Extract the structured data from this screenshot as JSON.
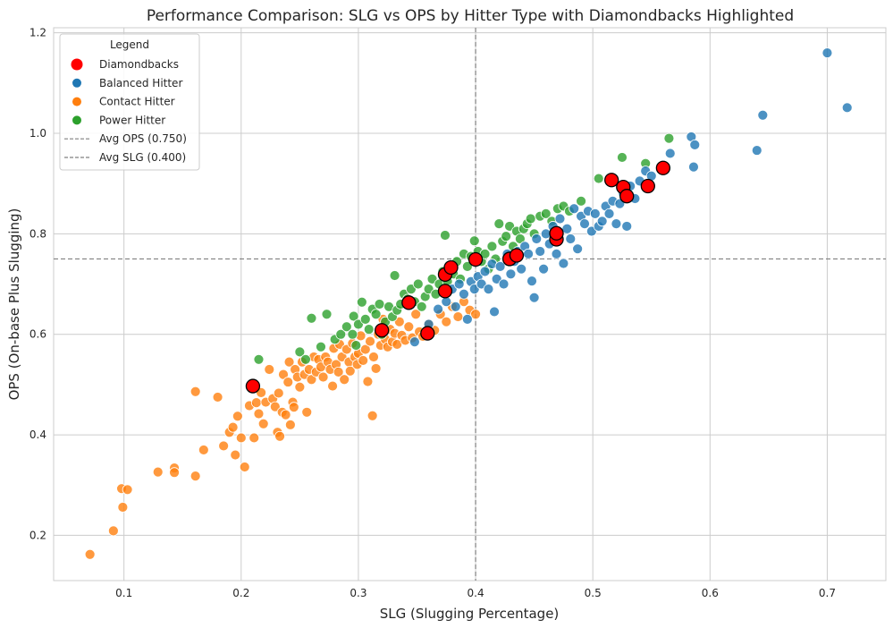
{
  "chart_data": {
    "type": "scatter",
    "title": "Performance Comparison: SLG vs OPS by Hitter Type with Diamondbacks Highlighted",
    "xlabel": "SLG (Slugging Percentage)",
    "ylabel": "OPS (On-base Plus Slugging)",
    "xlim": [
      0.04,
      0.75
    ],
    "ylim": [
      0.11,
      1.21
    ],
    "xticks": [
      0.1,
      0.2,
      0.3,
      0.4,
      0.5,
      0.6,
      0.7
    ],
    "xtick_labels": [
      "0.1",
      "0.2",
      "0.3",
      "0.4",
      "0.5",
      "0.6",
      "0.7"
    ],
    "yticks": [
      0.2,
      0.4,
      0.6,
      0.8,
      1.0,
      1.2
    ],
    "ytick_labels": [
      "0.2",
      "0.4",
      "0.6",
      "0.8",
      "1.0",
      "1.2"
    ],
    "grid": true,
    "legend": {
      "title": "Legend",
      "placement": "top-left",
      "entries": [
        {
          "label": "Diamondbacks",
          "kind": "marker",
          "color": "#ff0000"
        },
        {
          "label": "Balanced Hitter",
          "kind": "marker",
          "color": "#1f77b4"
        },
        {
          "label": "Contact Hitter",
          "kind": "marker",
          "color": "#ff7f0e"
        },
        {
          "label": "Power Hitter",
          "kind": "marker",
          "color": "#2ca02c"
        },
        {
          "label": "Avg OPS (0.750)",
          "kind": "line",
          "color": "#808080"
        },
        {
          "label": "Avg SLG (0.400)",
          "kind": "line",
          "color": "#808080"
        }
      ]
    },
    "reference_lines": [
      {
        "orientation": "horizontal",
        "value": 0.75,
        "color": "#808080"
      },
      {
        "orientation": "vertical",
        "value": 0.4,
        "color": "#808080"
      }
    ],
    "series": [
      {
        "name": "Contact Hitter",
        "color": "#ff7f0e",
        "points": [
          [
            0.071,
            0.162
          ],
          [
            0.091,
            0.209
          ],
          [
            0.098,
            0.293
          ],
          [
            0.099,
            0.256
          ],
          [
            0.103,
            0.291
          ],
          [
            0.129,
            0.326
          ],
          [
            0.143,
            0.334
          ],
          [
            0.143,
            0.325
          ],
          [
            0.161,
            0.318
          ],
          [
            0.161,
            0.486
          ],
          [
            0.168,
            0.37
          ],
          [
            0.18,
            0.475
          ],
          [
            0.185,
            0.378
          ],
          [
            0.19,
            0.405
          ],
          [
            0.193,
            0.415
          ],
          [
            0.195,
            0.36
          ],
          [
            0.197,
            0.437
          ],
          [
            0.2,
            0.394
          ],
          [
            0.203,
            0.336
          ],
          [
            0.207,
            0.458
          ],
          [
            0.211,
            0.394
          ],
          [
            0.213,
            0.464
          ],
          [
            0.215,
            0.442
          ],
          [
            0.217,
            0.484
          ],
          [
            0.219,
            0.422
          ],
          [
            0.221,
            0.465
          ],
          [
            0.224,
            0.53
          ],
          [
            0.227,
            0.472
          ],
          [
            0.229,
            0.456
          ],
          [
            0.231,
            0.405
          ],
          [
            0.232,
            0.483
          ],
          [
            0.233,
            0.397
          ],
          [
            0.235,
            0.445
          ],
          [
            0.236,
            0.52
          ],
          [
            0.238,
            0.44
          ],
          [
            0.24,
            0.505
          ],
          [
            0.241,
            0.545
          ],
          [
            0.242,
            0.42
          ],
          [
            0.244,
            0.465
          ],
          [
            0.245,
            0.455
          ],
          [
            0.246,
            0.53
          ],
          [
            0.248,
            0.515
          ],
          [
            0.25,
            0.495
          ],
          [
            0.252,
            0.545
          ],
          [
            0.254,
            0.52
          ],
          [
            0.256,
            0.445
          ],
          [
            0.258,
            0.53
          ],
          [
            0.26,
            0.51
          ],
          [
            0.262,
            0.555
          ],
          [
            0.264,
            0.525
          ],
          [
            0.266,
            0.55
          ],
          [
            0.268,
            0.535
          ],
          [
            0.27,
            0.515
          ],
          [
            0.272,
            0.555
          ],
          [
            0.274,
            0.545
          ],
          [
            0.276,
            0.53
          ],
          [
            0.278,
            0.497
          ],
          [
            0.279,
            0.572
          ],
          [
            0.281,
            0.54
          ],
          [
            0.283,
            0.525
          ],
          [
            0.284,
            0.58
          ],
          [
            0.286,
            0.555
          ],
          [
            0.288,
            0.51
          ],
          [
            0.29,
            0.57
          ],
          [
            0.292,
            0.545
          ],
          [
            0.293,
            0.527
          ],
          [
            0.295,
            0.582
          ],
          [
            0.297,
            0.555
          ],
          [
            0.299,
            0.54
          ],
          [
            0.3,
            0.562
          ],
          [
            0.302,
            0.597
          ],
          [
            0.304,
            0.548
          ],
          [
            0.306,
            0.57
          ],
          [
            0.308,
            0.506
          ],
          [
            0.31,
            0.586
          ],
          [
            0.312,
            0.438
          ],
          [
            0.313,
            0.555
          ],
          [
            0.315,
            0.532
          ],
          [
            0.317,
            0.6
          ],
          [
            0.319,
            0.578
          ],
          [
            0.321,
            0.63
          ],
          [
            0.323,
            0.59
          ],
          [
            0.325,
            0.575
          ],
          [
            0.327,
            0.61
          ],
          [
            0.329,
            0.585
          ],
          [
            0.331,
            0.602
          ],
          [
            0.333,
            0.58
          ],
          [
            0.335,
            0.625
          ],
          [
            0.337,
            0.598
          ],
          [
            0.34,
            0.588
          ],
          [
            0.343,
            0.615
          ],
          [
            0.346,
            0.593
          ],
          [
            0.349,
            0.64
          ],
          [
            0.352,
            0.605
          ],
          [
            0.355,
            0.596
          ],
          [
            0.36,
            0.62
          ],
          [
            0.365,
            0.608
          ],
          [
            0.37,
            0.64
          ],
          [
            0.375,
            0.625
          ],
          [
            0.38,
            0.655
          ],
          [
            0.385,
            0.635
          ],
          [
            0.39,
            0.665
          ],
          [
            0.395,
            0.648
          ],
          [
            0.4,
            0.64
          ]
        ]
      },
      {
        "name": "Power Hitter",
        "color": "#2ca02c",
        "points": [
          [
            0.215,
            0.55
          ],
          [
            0.25,
            0.565
          ],
          [
            0.255,
            0.55
          ],
          [
            0.26,
            0.632
          ],
          [
            0.268,
            0.575
          ],
          [
            0.273,
            0.64
          ],
          [
            0.28,
            0.59
          ],
          [
            0.285,
            0.6
          ],
          [
            0.29,
            0.615
          ],
          [
            0.295,
            0.6
          ],
          [
            0.296,
            0.636
          ],
          [
            0.298,
            0.578
          ],
          [
            0.3,
            0.62
          ],
          [
            0.303,
            0.664
          ],
          [
            0.306,
            0.63
          ],
          [
            0.309,
            0.61
          ],
          [
            0.312,
            0.65
          ],
          [
            0.315,
            0.64
          ],
          [
            0.318,
            0.66
          ],
          [
            0.32,
            0.6
          ],
          [
            0.323,
            0.625
          ],
          [
            0.326,
            0.655
          ],
          [
            0.329,
            0.635
          ],
          [
            0.331,
            0.717
          ],
          [
            0.333,
            0.648
          ],
          [
            0.336,
            0.66
          ],
          [
            0.339,
            0.68
          ],
          [
            0.342,
            0.67
          ],
          [
            0.345,
            0.69
          ],
          [
            0.348,
            0.665
          ],
          [
            0.351,
            0.7
          ],
          [
            0.354,
            0.655
          ],
          [
            0.357,
            0.675
          ],
          [
            0.36,
            0.69
          ],
          [
            0.363,
            0.71
          ],
          [
            0.366,
            0.68
          ],
          [
            0.369,
            0.7
          ],
          [
            0.372,
            0.725
          ],
          [
            0.374,
            0.797
          ],
          [
            0.376,
            0.705
          ],
          [
            0.378,
            0.735
          ],
          [
            0.381,
            0.72
          ],
          [
            0.384,
            0.745
          ],
          [
            0.387,
            0.71
          ],
          [
            0.39,
            0.76
          ],
          [
            0.393,
            0.735
          ],
          [
            0.396,
            0.755
          ],
          [
            0.399,
            0.786
          ],
          [
            0.402,
            0.765
          ],
          [
            0.405,
            0.745
          ],
          [
            0.408,
            0.76
          ],
          [
            0.411,
            0.73
          ],
          [
            0.414,
            0.775
          ],
          [
            0.417,
            0.75
          ],
          [
            0.42,
            0.82
          ],
          [
            0.423,
            0.785
          ],
          [
            0.426,
            0.795
          ],
          [
            0.429,
            0.815
          ],
          [
            0.432,
            0.775
          ],
          [
            0.435,
            0.805
          ],
          [
            0.438,
            0.79
          ],
          [
            0.441,
            0.81
          ],
          [
            0.444,
            0.82
          ],
          [
            0.447,
            0.83
          ],
          [
            0.45,
            0.8
          ],
          [
            0.455,
            0.835
          ],
          [
            0.46,
            0.84
          ],
          [
            0.465,
            0.825
          ],
          [
            0.47,
            0.85
          ],
          [
            0.475,
            0.855
          ],
          [
            0.48,
            0.845
          ],
          [
            0.49,
            0.865
          ],
          [
            0.505,
            0.91
          ],
          [
            0.525,
            0.952
          ],
          [
            0.545,
            0.94
          ],
          [
            0.565,
            0.99
          ]
        ]
      },
      {
        "name": "Balanced Hitter",
        "color": "#1f77b4",
        "points": [
          [
            0.348,
            0.585
          ],
          [
            0.36,
            0.62
          ],
          [
            0.368,
            0.65
          ],
          [
            0.375,
            0.665
          ],
          [
            0.38,
            0.69
          ],
          [
            0.383,
            0.655
          ],
          [
            0.386,
            0.7
          ],
          [
            0.39,
            0.68
          ],
          [
            0.393,
            0.63
          ],
          [
            0.396,
            0.705
          ],
          [
            0.399,
            0.69
          ],
          [
            0.402,
            0.715
          ],
          [
            0.405,
            0.7
          ],
          [
            0.408,
            0.725
          ],
          [
            0.411,
            0.69
          ],
          [
            0.414,
            0.74
          ],
          [
            0.416,
            0.645
          ],
          [
            0.418,
            0.71
          ],
          [
            0.421,
            0.735
          ],
          [
            0.424,
            0.7
          ],
          [
            0.427,
            0.76
          ],
          [
            0.43,
            0.72
          ],
          [
            0.433,
            0.745
          ],
          [
            0.436,
            0.765
          ],
          [
            0.439,
            0.73
          ],
          [
            0.442,
            0.775
          ],
          [
            0.445,
            0.76
          ],
          [
            0.448,
            0.706
          ],
          [
            0.45,
            0.673
          ],
          [
            0.452,
            0.79
          ],
          [
            0.455,
            0.765
          ],
          [
            0.458,
            0.73
          ],
          [
            0.46,
            0.8
          ],
          [
            0.463,
            0.78
          ],
          [
            0.466,
            0.815
          ],
          [
            0.469,
            0.76
          ],
          [
            0.472,
            0.83
          ],
          [
            0.475,
            0.741
          ],
          [
            0.478,
            0.81
          ],
          [
            0.481,
            0.79
          ],
          [
            0.484,
            0.85
          ],
          [
            0.487,
            0.77
          ],
          [
            0.49,
            0.835
          ],
          [
            0.493,
            0.82
          ],
          [
            0.496,
            0.845
          ],
          [
            0.499,
            0.805
          ],
          [
            0.502,
            0.84
          ],
          [
            0.505,
            0.815
          ],
          [
            0.508,
            0.825
          ],
          [
            0.511,
            0.855
          ],
          [
            0.514,
            0.84
          ],
          [
            0.517,
            0.865
          ],
          [
            0.52,
            0.82
          ],
          [
            0.523,
            0.86
          ],
          [
            0.526,
            0.88
          ],
          [
            0.529,
            0.815
          ],
          [
            0.532,
            0.895
          ],
          [
            0.536,
            0.87
          ],
          [
            0.54,
            0.905
          ],
          [
            0.545,
            0.925
          ],
          [
            0.55,
            0.915
          ],
          [
            0.566,
            0.96
          ],
          [
            0.584,
            0.993
          ],
          [
            0.586,
            0.933
          ],
          [
            0.587,
            0.977
          ],
          [
            0.64,
            0.966
          ],
          [
            0.645,
            1.036
          ],
          [
            0.7,
            1.16
          ],
          [
            0.717,
            1.051
          ]
        ]
      },
      {
        "name": "Diamondbacks",
        "color": "#ff0000",
        "points": [
          [
            0.21,
            0.497
          ],
          [
            0.32,
            0.608
          ],
          [
            0.343,
            0.663
          ],
          [
            0.359,
            0.602
          ],
          [
            0.374,
            0.686
          ],
          [
            0.374,
            0.719
          ],
          [
            0.379,
            0.733
          ],
          [
            0.4,
            0.749
          ],
          [
            0.429,
            0.75
          ],
          [
            0.435,
            0.757
          ],
          [
            0.469,
            0.789
          ],
          [
            0.469,
            0.801
          ],
          [
            0.516,
            0.907
          ],
          [
            0.526,
            0.893
          ],
          [
            0.529,
            0.875
          ],
          [
            0.547,
            0.895
          ],
          [
            0.56,
            0.931
          ]
        ]
      }
    ]
  }
}
